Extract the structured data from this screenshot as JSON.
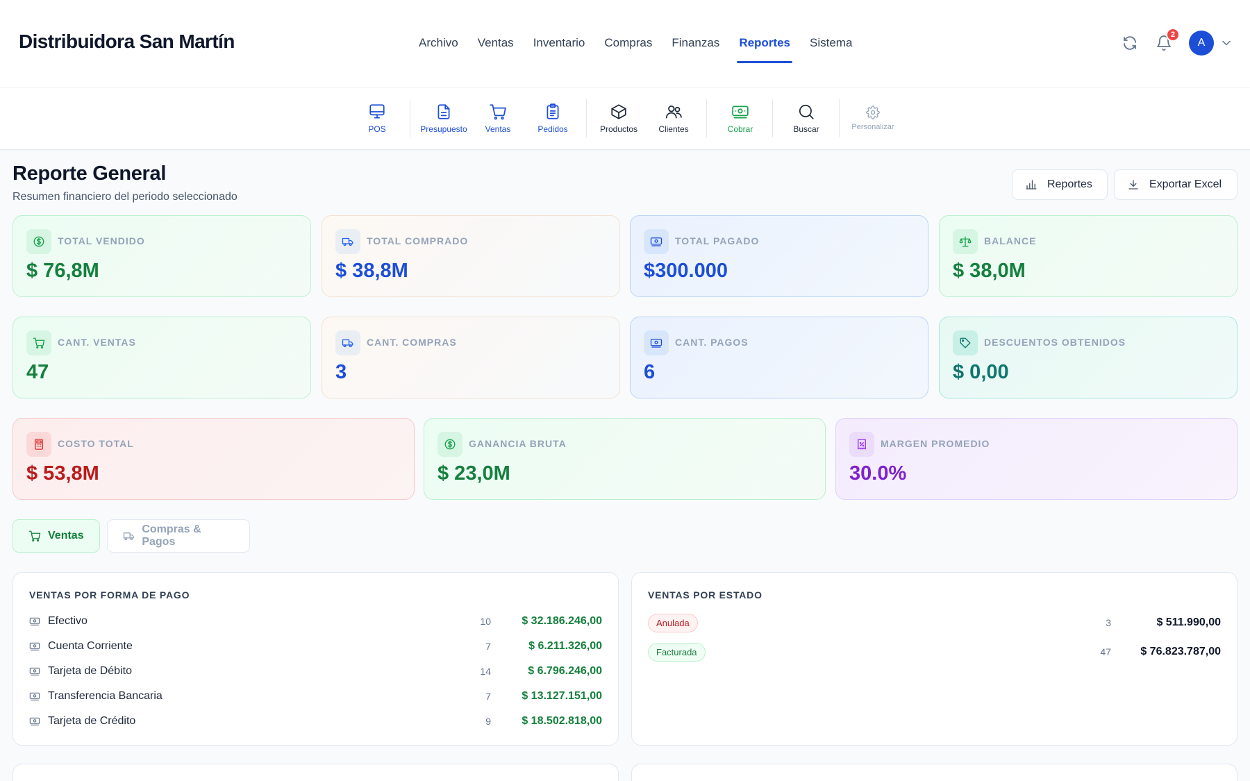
{
  "app": {
    "brand": "Distribuidora San Martín"
  },
  "nav": {
    "items": [
      "Archivo",
      "Ventas",
      "Inventario",
      "Compras",
      "Finanzas",
      "Reportes",
      "Sistema"
    ],
    "active": "Reportes"
  },
  "header": {
    "notification_count": "2",
    "avatar_initial": "A"
  },
  "toolbar": {
    "pos": "POS",
    "presupuesto": "Presupuesto",
    "ventas": "Ventas",
    "pedidos": "Pedidos",
    "productos": "Productos",
    "clientes": "Clientes",
    "cobrar": "Cobrar",
    "buscar": "Buscar",
    "personalizar": "Personalizar"
  },
  "page": {
    "title": "Reporte General",
    "subtitle": "Resumen financiero del periodo seleccionado",
    "btn_reportes": "Reportes",
    "btn_export": "Exportar Excel"
  },
  "stats": {
    "total_vendido": {
      "label": "TOTAL VENDIDO",
      "value": "$ 76,8M",
      "icon": "dollar-circle-icon"
    },
    "total_comprado": {
      "label": "TOTAL COMPRADO",
      "value": "$ 38,8M",
      "icon": "truck-icon"
    },
    "total_pagado": {
      "label": "TOTAL PAGADO",
      "value": "$300.000",
      "icon": "banknote-icon"
    },
    "balance": {
      "label": "BALANCE",
      "value": "$ 38,0M",
      "icon": "scale-icon"
    },
    "cant_ventas": {
      "label": "CANT. VENTAS",
      "value": "47",
      "icon": "cart-icon"
    },
    "cant_compras": {
      "label": "CANT. COMPRAS",
      "value": "3",
      "icon": "truck-icon"
    },
    "cant_pagos": {
      "label": "CANT. PAGOS",
      "value": "6",
      "icon": "banknote-icon"
    },
    "descuentos": {
      "label": "DESCUENTOS OBTENIDOS",
      "value": "$ 0,00",
      "icon": "tag-icon"
    },
    "costo_total": {
      "label": "COSTO TOTAL",
      "value": "$ 53,8M",
      "icon": "calculator-icon"
    },
    "ganancia_bruta": {
      "label": "GANANCIA BRUTA",
      "value": "$ 23,0M",
      "icon": "dollar-circle-icon"
    },
    "margen_promedio": {
      "label": "MARGEN PROMEDIO",
      "value": "30.0%",
      "icon": "receipt-percent-icon"
    }
  },
  "tabs": {
    "ventas": "Ventas",
    "compras": "Compras & Pagos"
  },
  "forma_pago": {
    "title": "VENTAS POR FORMA DE PAGO",
    "rows": [
      {
        "name": "Efectivo",
        "count": "10",
        "amount": "$ 32.186.246,00"
      },
      {
        "name": "Cuenta Corriente",
        "count": "7",
        "amount": "$ 6.211.326,00"
      },
      {
        "name": "Tarjeta de Débito",
        "count": "14",
        "amount": "$ 6.796.246,00"
      },
      {
        "name": "Transferencia Bancaria",
        "count": "7",
        "amount": "$ 13.127.151,00"
      },
      {
        "name": "Tarjeta de Crédito",
        "count": "9",
        "amount": "$ 18.502.818,00"
      }
    ]
  },
  "por_estado": {
    "title": "VENTAS POR ESTADO",
    "rows": [
      {
        "status": "Anulada",
        "count": "3",
        "amount": "$ 511.990,00"
      },
      {
        "status": "Facturada",
        "count": "47",
        "amount": "$ 76.823.787,00"
      }
    ]
  },
  "colors": {
    "accent": "#1d4ed8",
    "green": "#15803d",
    "red": "#b91c1c",
    "purple": "#7e22ce",
    "teal": "#0f766e"
  }
}
